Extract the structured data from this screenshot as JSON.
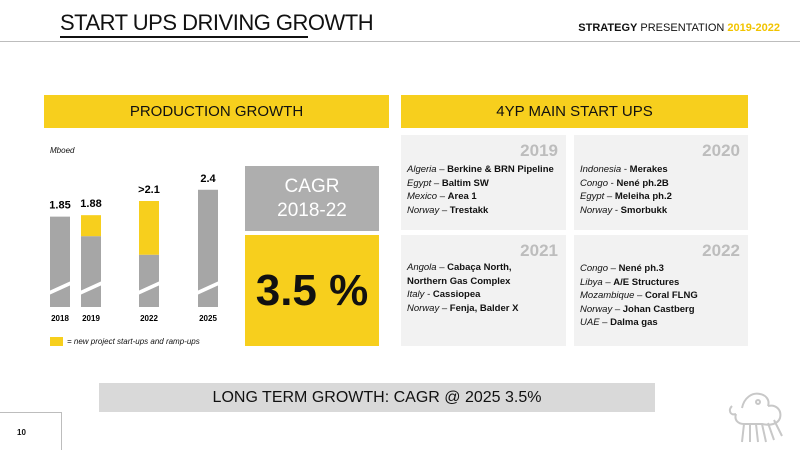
{
  "header": {
    "title": "START UPS DRIVING GROWTH",
    "strategy_bold": "STRATEGY",
    "strategy_rest": " PRESENTATION ",
    "strategy_years": "2019-2022"
  },
  "production": {
    "header": "PRODUCTION GROWTH",
    "unit": "Mboed",
    "legend": "= new project start-ups and ramp-ups"
  },
  "chart_data": {
    "type": "bar",
    "categories": [
      "2018",
      "2019",
      "2022",
      "2025"
    ],
    "total_labels": [
      "1.85",
      "1.88",
      ">2.1",
      "2.4"
    ],
    "series": [
      {
        "values": [
          1.85,
          1.45,
          1.07,
          2.4
        ]
      },
      {
        "values": [
          0,
          0.43,
          1.1,
          0
        ]
      }
    ],
    "colors": [
      "#a6a6a6",
      "#f7cf1d"
    ],
    "ylim": [
      0,
      2.6
    ]
  },
  "cagr": {
    "line1": "CAGR",
    "line2": "2018-22",
    "value": "3.5 %"
  },
  "startups": {
    "header": "4YP  MAIN START UPS",
    "y2019": {
      "year": "2019",
      "items": [
        {
          "country": "Algeria",
          "sep": " – ",
          "project": "Berkine & BRN Pipeline"
        },
        {
          "country": "Egypt",
          "sep": " – ",
          "project": "Baltim SW"
        },
        {
          "country": "Mexico",
          "sep": " – ",
          "project": "Area 1"
        },
        {
          "country": "Norway",
          "sep": " – ",
          "project": "Trestakk"
        }
      ]
    },
    "y2020": {
      "year": "2020",
      "items": [
        {
          "country": "Indonesia",
          "sep": " - ",
          "project": "Merakes"
        },
        {
          "country": "Congo",
          "sep": " - ",
          "project": "Nené ph.2B"
        },
        {
          "country": "Egypt",
          "sep": " – ",
          "project": "Meleiha ph.2"
        },
        {
          "country": "Norway",
          "sep": " - ",
          "project": "Smorbukk"
        }
      ]
    },
    "y2021": {
      "year": "2021",
      "items": [
        {
          "country": "Angola",
          "sep": " – ",
          "project": "Cabaça North,"
        },
        {
          "country": "",
          "sep": "",
          "project": "Northern Gas Complex"
        },
        {
          "country": "Italy",
          "sep": " - ",
          "project": "Cassiopea"
        },
        {
          "country": "Norway",
          "sep": " – ",
          "project": "Fenja, Balder X"
        }
      ]
    },
    "y2022": {
      "year": "2022",
      "items": [
        {
          "country": "Congo",
          "sep": " – ",
          "project": "Nené ph.3"
        },
        {
          "country": "Libya",
          "sep": " – ",
          "project": "A/E Structures"
        },
        {
          "country": "Mozambique",
          "sep": " – ",
          "project": "Coral FLNG"
        },
        {
          "country": "Norway",
          "sep": " – ",
          "project": "Johan Castberg"
        },
        {
          "country": "UAE",
          "sep": " – ",
          "project": "Dalma gas"
        }
      ]
    }
  },
  "footer": {
    "long_term": "LONG TERM GROWTH: CAGR @ 2025 3.5%",
    "page": "10"
  }
}
